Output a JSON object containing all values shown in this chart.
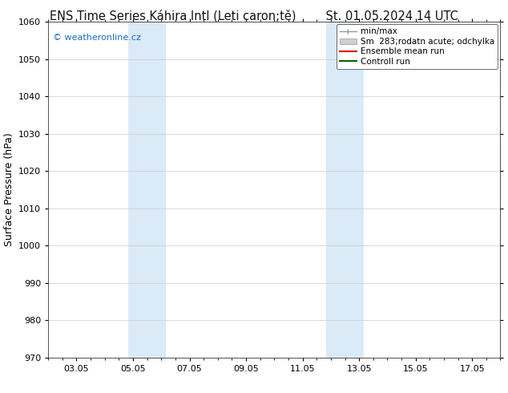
{
  "title_left": "ENS Time Series Káhira Intl (Leti caron;tě)",
  "title_right": "St. 01.05.2024 14 UTC",
  "ylabel": "Surface Pressure (hPa)",
  "ylim": [
    970,
    1060
  ],
  "yticks": [
    970,
    980,
    990,
    1000,
    1010,
    1020,
    1030,
    1040,
    1050,
    1060
  ],
  "xtick_labels": [
    "03.05",
    "05.05",
    "07.05",
    "09.05",
    "11.05",
    "13.05",
    "15.05",
    "17.05"
  ],
  "xtick_positions": [
    2,
    4,
    6,
    8,
    10,
    12,
    14,
    16
  ],
  "xlim": [
    1,
    17
  ],
  "shaded_regions": [
    {
      "x_start": 3.83,
      "x_end": 5.17,
      "color": "#daeaf7"
    },
    {
      "x_start": 10.83,
      "x_end": 12.17,
      "color": "#daeaf7"
    }
  ],
  "watermark_text": "© weatheronline.cz",
  "watermark_color": "#1a6bbf",
  "legend_labels": [
    "min/max",
    "Sm  283;rodatn acute; odchylka",
    "Ensemble mean run",
    "Controll run"
  ],
  "legend_line_colors": [
    "#999999",
    "#bbbbbb",
    "#dd0000",
    "#006600"
  ],
  "background_color": "#ffffff",
  "grid_color": "#cccccc",
  "title_fontsize": 10.5,
  "label_fontsize": 9,
  "tick_fontsize": 8,
  "legend_fontsize": 7.5
}
